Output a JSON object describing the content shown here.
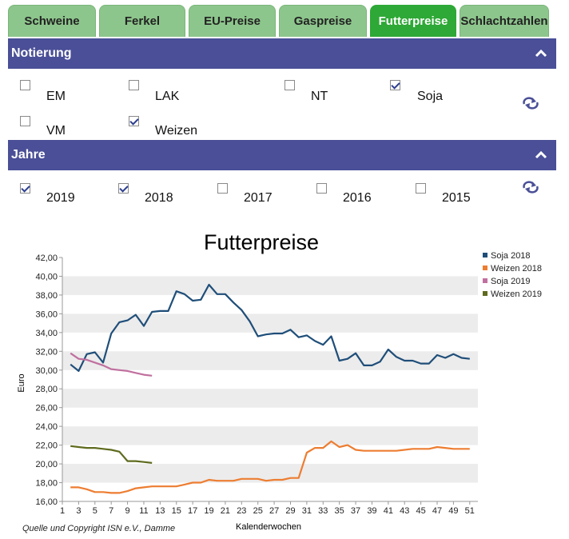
{
  "tabs": [
    {
      "label": "Schweine",
      "active": false
    },
    {
      "label": "Ferkel",
      "active": false
    },
    {
      "label": "EU-Preise",
      "active": false
    },
    {
      "label": "Gaspreise",
      "active": false
    },
    {
      "label": "Futterpreise",
      "active": true
    },
    {
      "label": "Schlachtzahlen",
      "active": false
    }
  ],
  "notierung": {
    "title": "Notierung",
    "options": [
      {
        "label": "EM",
        "checked": false
      },
      {
        "label": "LAK",
        "checked": false
      },
      {
        "label": "NT",
        "checked": false
      },
      {
        "label": "Soja",
        "checked": true
      },
      {
        "label": "VM",
        "checked": false
      },
      {
        "label": "Weizen",
        "checked": true
      }
    ]
  },
  "jahre": {
    "title": "Jahre",
    "options": [
      {
        "label": "2019",
        "checked": true
      },
      {
        "label": "2018",
        "checked": true
      },
      {
        "label": "2017",
        "checked": false
      },
      {
        "label": "2016",
        "checked": false
      },
      {
        "label": "2015",
        "checked": false
      }
    ]
  },
  "colors": {
    "tab": "#8dc68c",
    "tab_active": "#2ea836",
    "header": "#4a4f97",
    "reset_icon": "#4a4f97"
  },
  "icons": {
    "collapse": "chevron-up-icon",
    "reset": "refresh-icon"
  },
  "chart_data": {
    "type": "line",
    "title": "Futterpreise",
    "xlabel": "Kalenderwochen",
    "ylabel": "Euro",
    "xlim": [
      1,
      52
    ],
    "ylim": [
      16,
      42
    ],
    "x_ticks": [
      1,
      3,
      5,
      7,
      9,
      11,
      13,
      15,
      17,
      19,
      21,
      23,
      25,
      27,
      29,
      31,
      33,
      35,
      37,
      39,
      41,
      43,
      45,
      47,
      49,
      51
    ],
    "y_ticks": [
      "16,00",
      "18,00",
      "20,00",
      "22,00",
      "24,00",
      "26,00",
      "28,00",
      "30,00",
      "32,00",
      "34,00",
      "36,00",
      "38,00",
      "40,00",
      "42,00"
    ],
    "grid": "alternating horizontal bands",
    "legend_position": "top-right",
    "series": [
      {
        "name": "Soja 2018",
        "color": "#1f4e79",
        "x": [
          2,
          3,
          4,
          5,
          6,
          7,
          8,
          9,
          10,
          11,
          12,
          13,
          14,
          15,
          16,
          17,
          18,
          19,
          20,
          21,
          22,
          23,
          24,
          25,
          26,
          27,
          28,
          29,
          30,
          31,
          32,
          33,
          34,
          35,
          36,
          37,
          38,
          39,
          40,
          41,
          42,
          43,
          44,
          45,
          46,
          47,
          48,
          49,
          50,
          51
        ],
        "y": [
          30.6,
          29.9,
          31.7,
          31.9,
          30.8,
          33.9,
          35.1,
          35.3,
          35.9,
          34.7,
          36.2,
          36.3,
          36.3,
          38.4,
          38.1,
          37.4,
          37.5,
          39.1,
          38.1,
          38.1,
          37.2,
          36.4,
          35.2,
          33.6,
          33.8,
          33.9,
          33.9,
          34.3,
          33.5,
          33.7,
          33.1,
          32.7,
          33.6,
          31.0,
          31.2,
          31.8,
          30.5,
          30.5,
          30.9,
          32.2,
          31.4,
          31.0,
          31.0,
          30.7,
          30.7,
          31.6,
          31.3,
          31.7,
          31.3,
          31.2
        ]
      },
      {
        "name": "Weizen 2018",
        "color": "#ed7d31",
        "x": [
          2,
          3,
          4,
          5,
          6,
          7,
          8,
          9,
          10,
          11,
          12,
          13,
          14,
          15,
          16,
          17,
          18,
          19,
          20,
          21,
          22,
          23,
          24,
          25,
          26,
          27,
          28,
          29,
          30,
          31,
          32,
          33,
          34,
          35,
          36,
          37,
          38,
          39,
          40,
          41,
          42,
          43,
          44,
          45,
          46,
          47,
          48,
          49,
          50,
          51
        ],
        "y": [
          17.5,
          17.5,
          17.3,
          17.0,
          17.0,
          16.9,
          16.9,
          17.1,
          17.4,
          17.5,
          17.6,
          17.6,
          17.6,
          17.6,
          17.8,
          18.0,
          18.0,
          18.3,
          18.2,
          18.2,
          18.2,
          18.4,
          18.4,
          18.4,
          18.2,
          18.3,
          18.3,
          18.5,
          18.5,
          21.2,
          21.7,
          21.7,
          22.4,
          21.8,
          22.0,
          21.5,
          21.4,
          21.4,
          21.4,
          21.4,
          21.4,
          21.5,
          21.6,
          21.6,
          21.6,
          21.8,
          21.7,
          21.6,
          21.6,
          21.6
        ]
      },
      {
        "name": "Soja 2019",
        "color": "#c0709f",
        "x": [
          2,
          3,
          4,
          5,
          6,
          7,
          8,
          9,
          10,
          11,
          12
        ],
        "y": [
          31.8,
          31.2,
          31.1,
          30.8,
          30.5,
          30.1,
          30.0,
          29.9,
          29.7,
          29.5,
          29.4
        ]
      },
      {
        "name": "Weizen 2019",
        "color": "#5f6a1e",
        "x": [
          2,
          3,
          4,
          5,
          6,
          7,
          8,
          9,
          10,
          11,
          12
        ],
        "y": [
          21.9,
          21.8,
          21.7,
          21.7,
          21.6,
          21.5,
          21.3,
          20.3,
          20.3,
          20.2,
          20.1
        ]
      }
    ]
  },
  "footer": {
    "copyright": "Quelle und Copyright  ISN e.V., Damme"
  }
}
